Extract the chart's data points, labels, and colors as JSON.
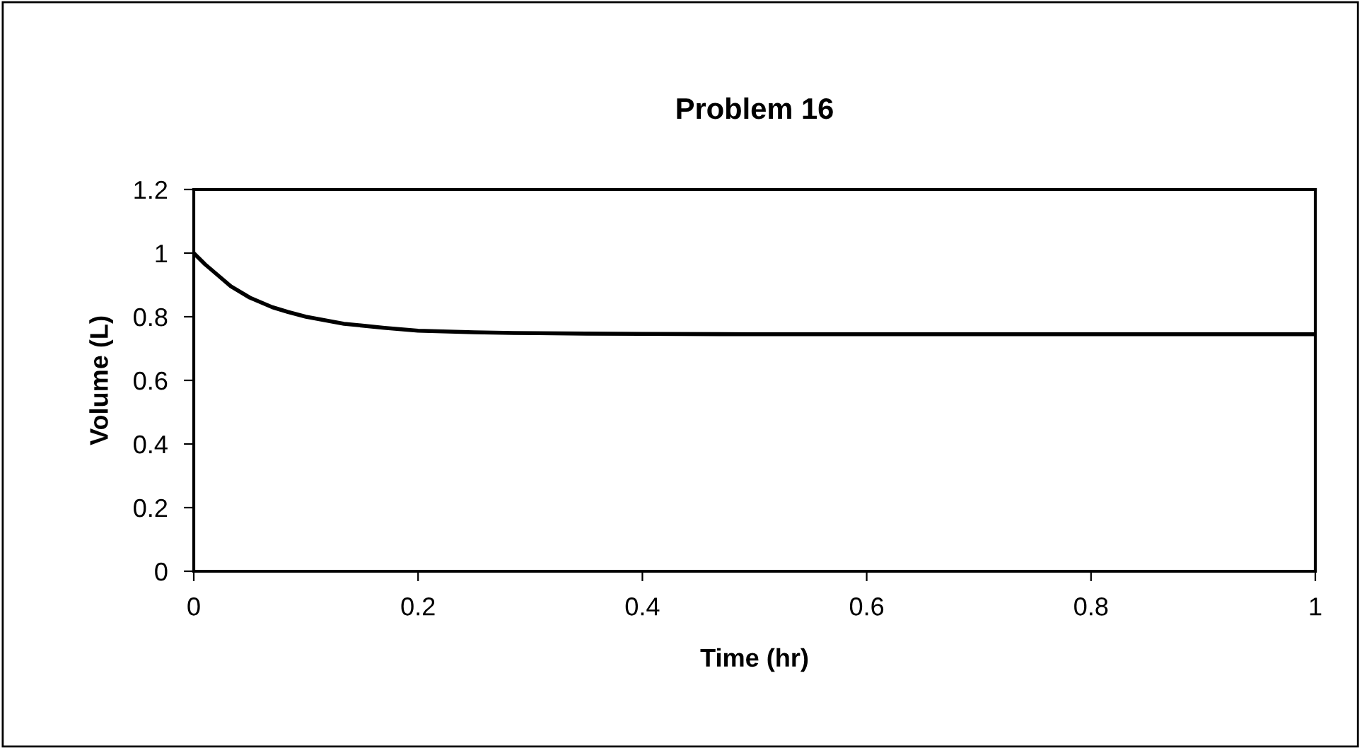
{
  "chart_data": {
    "type": "line",
    "title": "Problem 16",
    "xlabel": "Time (hr)",
    "ylabel": "Volume (L)",
    "x": [
      0,
      0.01,
      0.02,
      0.033,
      0.05,
      0.07,
      0.084,
      0.1,
      0.134,
      0.17,
      0.2,
      0.25,
      0.285,
      0.35,
      0.4,
      0.5,
      0.6,
      0.8,
      1
    ],
    "series": [
      {
        "color": "#000000",
        "values": [
          1.0,
          0.965,
          0.935,
          0.896,
          0.86,
          0.83,
          0.815,
          0.8,
          0.778,
          0.765,
          0.756,
          0.751,
          0.749,
          0.747,
          0.746,
          0.745,
          0.745,
          0.745,
          0.745
        ]
      }
    ],
    "xlim": [
      0,
      1
    ],
    "xticks": [
      0,
      0.2,
      0.4,
      0.6,
      0.8,
      1
    ],
    "ylim": [
      0,
      1.2
    ],
    "yticks": [
      0,
      0.2,
      0.4,
      0.6,
      0.8,
      1,
      1.2
    ],
    "grid": false,
    "legend": false,
    "marker": "none",
    "line_style": "solid"
  }
}
